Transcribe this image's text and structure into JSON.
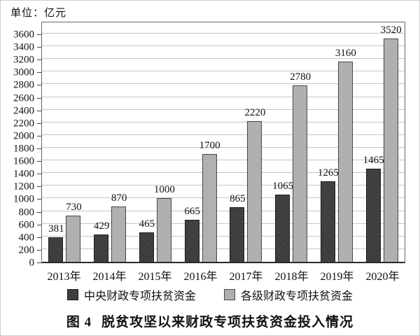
{
  "unit_label": "单位：亿元",
  "caption": {
    "figure_label": "图 4",
    "text": "脱贫攻坚以来财政专项扶贫资金投入情况"
  },
  "chart_data": {
    "type": "bar",
    "title": "图4 脱贫攻坚以来财政专项扶贫资金投入情况",
    "unit": "亿元",
    "categories": [
      "2013年",
      "2014年",
      "2015年",
      "2016年",
      "2017年",
      "2018年",
      "2019年",
      "2020年"
    ],
    "series": [
      {
        "name": "中央财政专项扶贫资金",
        "values": [
          381,
          429,
          465,
          665,
          865,
          1065,
          1265,
          1465
        ],
        "fill": "#3f3f3f",
        "pattern": "diagonal-hatch"
      },
      {
        "name": "各级财政专项扶贫资金",
        "values": [
          730,
          870,
          1000,
          1700,
          2220,
          2780,
          3160,
          3520
        ],
        "fill": "#b0b0b0",
        "pattern": "solid"
      }
    ],
    "ylim": [
      0,
      3600
    ],
    "ytick_step": 200,
    "grid": true,
    "value_labels": true,
    "legend_position": "bottom"
  },
  "colors": {
    "dark_bar": "#3f3f3f",
    "light_bar": "#b0b0b0",
    "gridline": "#c6c6c6",
    "axis": "#2b2b2b",
    "text": "#111111",
    "frame": "#cccccc"
  }
}
